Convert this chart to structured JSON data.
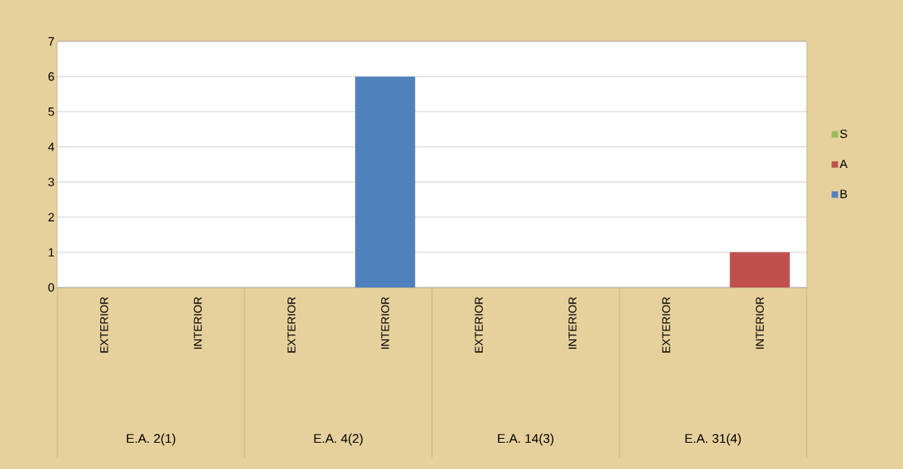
{
  "chart_data": {
    "type": "bar",
    "stacked": true,
    "categories": [
      "EXTERIOR",
      "INTERIOR",
      "EXTERIOR",
      "INTERIOR",
      "EXTERIOR",
      "INTERIOR",
      "EXTERIOR",
      "INTERIOR"
    ],
    "annotations": [
      "E.A. 2(1)",
      "E.A. 4(2)",
      "E.A. 14(3)",
      "E.A. 31(4)"
    ],
    "series": [
      {
        "name": "B",
        "color": "#4f81bd",
        "values": [
          0,
          0,
          0,
          6,
          0,
          0,
          0,
          0
        ]
      },
      {
        "name": "A",
        "color": "#c0504d",
        "values": [
          0,
          0,
          0,
          0,
          0,
          0,
          0,
          1
        ]
      },
      {
        "name": "S",
        "color": "#9bbb59",
        "values": [
          0,
          0,
          0,
          0,
          0,
          0,
          0,
          0
        ]
      }
    ],
    "ylim": [
      0,
      7
    ],
    "yticks": [
      0,
      1,
      2,
      3,
      4,
      5,
      6,
      7
    ],
    "grid": "y",
    "legend": "right"
  }
}
